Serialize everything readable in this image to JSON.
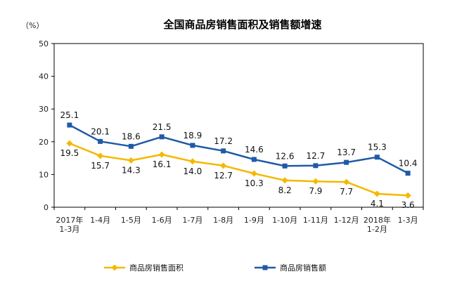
{
  "chart_data": {
    "type": "line",
    "title": "全国商品房销售面积及销售额增速",
    "unit_label": "（%）",
    "categories": [
      [
        "2017年",
        "1-3月"
      ],
      [
        "1-4月"
      ],
      [
        "1-5月"
      ],
      [
        "1-6月"
      ],
      [
        "1-7月"
      ],
      [
        "1-8月"
      ],
      [
        "1-9月"
      ],
      [
        "1-10月"
      ],
      [
        "1-11月"
      ],
      [
        "1-12月"
      ],
      [
        "2018年",
        "1-2月"
      ],
      [
        "1-3月"
      ]
    ],
    "series": [
      {
        "name": "商品房销售面积",
        "color": "#F5B800",
        "marker": "diamond",
        "values": [
          19.5,
          15.7,
          14.3,
          16.1,
          14.0,
          12.7,
          10.3,
          8.2,
          7.9,
          7.7,
          4.1,
          3.6
        ],
        "labels": [
          "19.5",
          "15.7",
          "14.3",
          "16.1",
          "14.0",
          "12.7",
          "10.3",
          "8.2",
          "7.9",
          "7.7",
          "4.1",
          "3.6"
        ]
      },
      {
        "name": "商品房销售额",
        "color": "#1F5AA6",
        "marker": "square",
        "values": [
          25.1,
          20.1,
          18.6,
          21.5,
          18.9,
          17.2,
          14.6,
          12.6,
          12.7,
          13.7,
          15.3,
          10.4
        ],
        "labels": [
          "25.1",
          "20.1",
          "18.6",
          "21.5",
          "18.9",
          "17.2",
          "14.6",
          "12.6",
          "12.7",
          "13.7",
          "15.3",
          "10.4"
        ]
      }
    ],
    "ylim": [
      0,
      50
    ],
    "yticks": [
      "0",
      "10",
      "20",
      "30",
      "40",
      "50"
    ],
    "grid": false,
    "legend_position": "bottom"
  }
}
